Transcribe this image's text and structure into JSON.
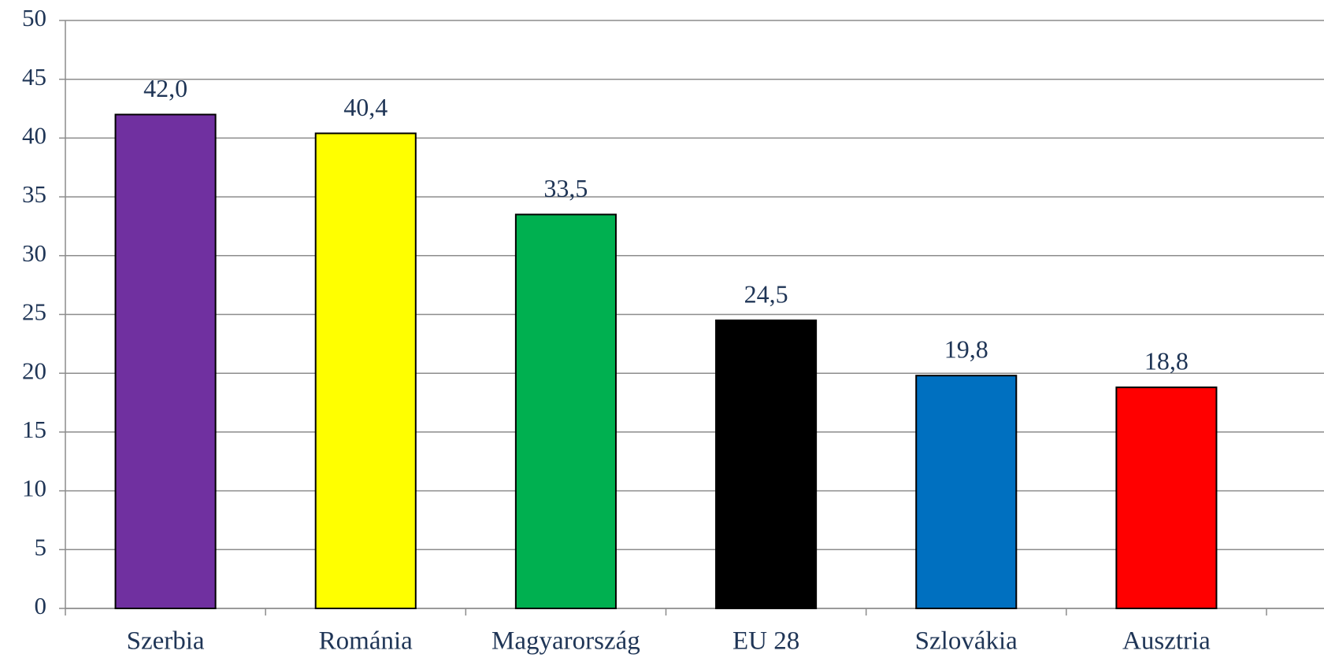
{
  "chart_data": {
    "type": "bar",
    "categories": [
      "Szerbia",
      "Románia",
      "Magyarország",
      "EU 28",
      "Szlovákia",
      "Ausztria"
    ],
    "values": [
      42.0,
      40.4,
      33.5,
      24.5,
      19.8,
      18.8
    ],
    "value_labels": [
      "42,0",
      "40,4",
      "33,5",
      "24,5",
      "19,8",
      "18,8"
    ],
    "colors": [
      "#7030a0",
      "#ffff00",
      "#00b050",
      "#000000",
      "#0070c0",
      "#ff0000"
    ],
    "ylim": [
      0,
      50
    ],
    "yticks": [
      0,
      5,
      10,
      15,
      20,
      25,
      30,
      35,
      40,
      45,
      50
    ],
    "grid": true
  }
}
